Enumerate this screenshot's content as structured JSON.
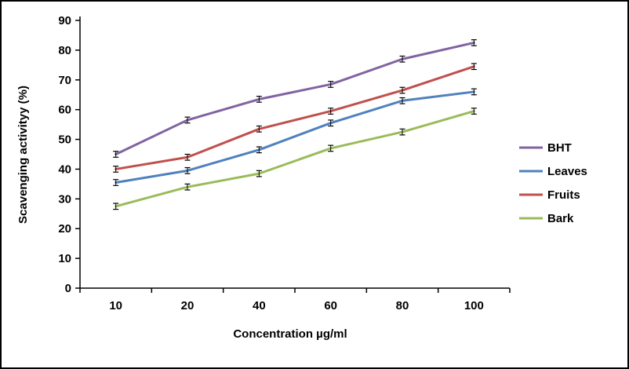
{
  "chart_data": {
    "type": "line",
    "title": "",
    "xlabel": "Concentration µg/ml",
    "ylabel": "Scavenging activityy (%)",
    "categories": [
      "10",
      "20",
      "40",
      "60",
      "80",
      "100"
    ],
    "ylim": [
      0,
      90
    ],
    "ytick_step": 10,
    "grid": false,
    "legend_position": "right",
    "error_bar": 1,
    "axis_color": "#000000",
    "series": [
      {
        "name": "BHT",
        "color": "#8064A2",
        "values": [
          45,
          56.5,
          63.5,
          68.5,
          77,
          82.5
        ]
      },
      {
        "name": "Leaves",
        "color": "#4F81BD",
        "values": [
          35.5,
          39.5,
          46.5,
          55.5,
          63,
          66
        ]
      },
      {
        "name": "Fruits",
        "color": "#C0504D",
        "values": [
          40,
          44,
          53.5,
          59.5,
          66.5,
          74.5
        ]
      },
      {
        "name": "Bark",
        "color": "#9BBB59",
        "values": [
          27.5,
          34,
          38.5,
          47,
          52.5,
          59.5
        ]
      }
    ]
  }
}
